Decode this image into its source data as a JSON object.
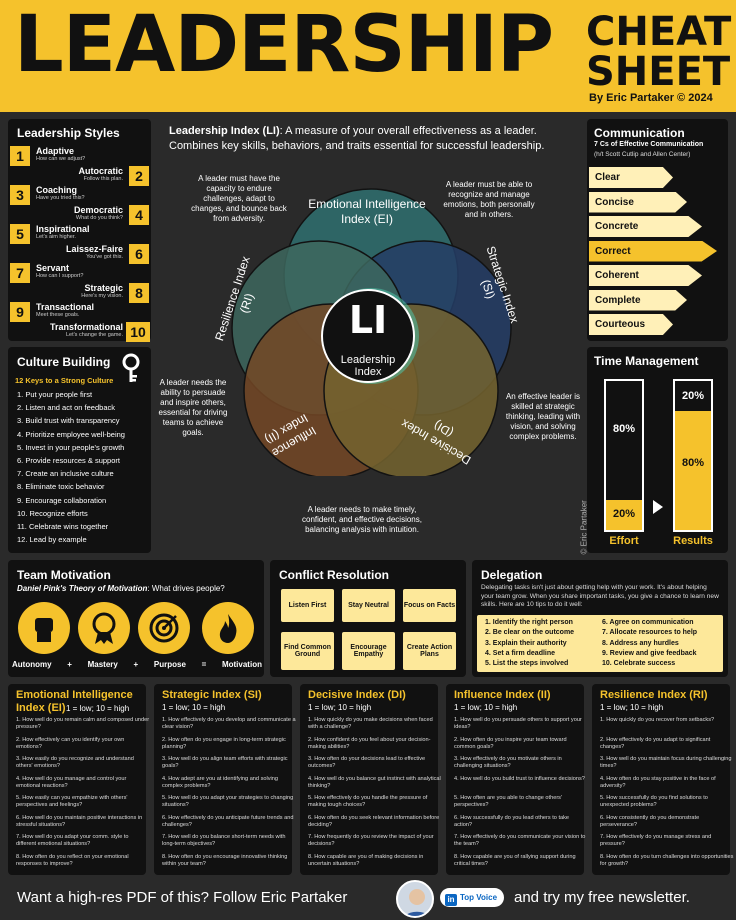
{
  "header": {
    "title": "LEADERSHIP",
    "cheat": "CHEAT",
    "sheet": "SHEET",
    "author": "By Eric Partaker © 2024"
  },
  "styles": {
    "title": "Leadership Styles",
    "items": [
      {
        "n": "1",
        "name": "Adaptive",
        "sub": "How can we adjust?"
      },
      {
        "n": "2",
        "name": "Autocratic",
        "sub": "Follow this plan."
      },
      {
        "n": "3",
        "name": "Coaching",
        "sub": "Have you tried this?"
      },
      {
        "n": "4",
        "name": "Democratic",
        "sub": "What do you think?"
      },
      {
        "n": "5",
        "name": "Inspirational",
        "sub": "Let's aim higher."
      },
      {
        "n": "6",
        "name": "Laissez-Faire",
        "sub": "You've got this."
      },
      {
        "n": "7",
        "name": "Servant",
        "sub": "How can I support?"
      },
      {
        "n": "8",
        "name": "Strategic",
        "sub": "Here's my vision."
      },
      {
        "n": "9",
        "name": "Transactional",
        "sub": "Meet these goals."
      },
      {
        "n": "10",
        "name": "Transformational",
        "sub": "Let's change the game."
      }
    ]
  },
  "culture": {
    "title": "Culture Building",
    "subtitle": "12 Keys to a Strong Culture",
    "items": [
      "1.  Put your people first",
      "2.  Listen and act on feedback",
      "3.  Build trust with transparency",
      "4.  Prioritize employee well-being",
      "5.  Invest in your people's growth",
      "6.  Provide resources & support",
      "7.  Create an inclusive culture",
      "8.  Eliminate toxic behavior",
      "9.  Encourage collaboration",
      "10.  Recognize efforts",
      "11.  Celebrate wins together",
      "12.  Lead by example"
    ]
  },
  "index": {
    "lead": "Leadership Index (LI)",
    "desc": ": A measure of your overall effectiveness as a leader. Combines key skills, behaviors, and traits essential for successful leadership.",
    "li": "LI",
    "li_label": "Leadership Index",
    "ei": "Emotional Intelligence Index (EI)",
    "si": "Strategic Index (SI)",
    "ri": "Resilience Index (RI)",
    "ii": "Influence Index (II)",
    "di": "Decisive Index (DI)",
    "note_ri": "A leader must have the capacity to endure challenges, adapt to changes, and bounce back from adversity.",
    "note_ei": "A leader must be able to recognize and manage emotions, both personally and in others.",
    "note_ii": "A leader needs the ability to persuade and inspire others, essential for driving teams to achieve goals.",
    "note_si": "An effective leader is skilled at strategic thinking, leading with vision, and solving complex problems.",
    "note_di": "A leader needs to make timely, confident, and effective decisions, balancing analysis with intuition.",
    "watermark": "© Eric Partaker"
  },
  "comm": {
    "title": "Communication",
    "subtitle": "7 Cs of Effective Communication",
    "credit": "(h/t Scott Cutlip and Allen Center)",
    "items": [
      "Clear",
      "Concise",
      "Concrete",
      "Correct",
      "Coherent",
      "Complete",
      "Courteous"
    ]
  },
  "time": {
    "title": "Time Management",
    "effort_top": "80%",
    "effort_bottom": "20%",
    "results_top": "20%",
    "results_bottom": "80%",
    "effort": "Effort",
    "results": "Results",
    "effort_fraction": 0.2,
    "results_fraction": 0.8
  },
  "motivation": {
    "title": "Team Motivation",
    "theory": "Daniel Pink's Theory of Motivation",
    "question": ": What drives people?",
    "eq": [
      "Autonomy",
      "+",
      "Mastery",
      "+",
      "Purpose",
      "=",
      "Motivation"
    ]
  },
  "conflict": {
    "title": "Conflict Resolution",
    "items": [
      "Listen First",
      "Stay Neutral",
      "Focus on Facts",
      "Find Common Ground",
      "Encourage Empathy",
      "Create Action Plans"
    ]
  },
  "delegation": {
    "title": "Delegation",
    "desc": "Delegating tasks isn't just about getting help with your work. It's about helping your team grow. When you share important tasks, you give a chance to learn new skills. Here are 10 tips to do it well:",
    "items": [
      "1.  Identify the right person",
      "2.  Be clear on the outcome",
      "3.  Explain their authority",
      "4.  Set a firm deadline",
      "5.  List the steps involved",
      "6.  Agree on communication",
      "7.  Allocate resources to help",
      "8.  Address any hurdles",
      "9.  Review and give feedback",
      "10. Celebrate success"
    ]
  },
  "questions": [
    {
      "title": "Emotional Intelligence Index (EI)",
      "scale": "1 = low; 10 = high",
      "items": [
        "1. How well do you remain calm and composed under pressure?",
        "2. How effectively can you identify your own emotions?",
        "3. How easily do you recognize and understand others' emotions?",
        "4. How well do you manage and control your emotional reactions?",
        "5. How easily can you empathize with others' perspectives and feelings?",
        "6. How well do you maintain positive interactions in stressful situations?",
        "7. How well do you adapt your comm. style to different emotional situations?",
        "8. How often do you reflect on your emotional responses to improve?"
      ]
    },
    {
      "title": "Strategic Index (SI)",
      "scale": "1 = low; 10 = high",
      "items": [
        "1. How effectively do you develop and communicate a clear vision?",
        "2. How often do you engage in long-term strategic planning?",
        "3. How well do you align team efforts with strategic goals?",
        "4. How adept are you at identifying and solving complex problems?",
        "5. How well do you adapt your strategies to changing situations?",
        "6. How effectively do you anticipate future trends and challenges?",
        "7. How well do you balance short-term needs with long-term objectives?",
        "8. How often do you encourage innovative thinking within your team?"
      ]
    },
    {
      "title": "Decisive Index (DI)",
      "scale": "1 = low; 10 = high",
      "items": [
        "1. How quickly do you make decisions when faced with a challenge?",
        "2. How confident do you feel about your decision-making abilities?",
        "3. How often do your decisions lead to effective outcomes?",
        "4. How well do you balance gut instinct with analytical thinking?",
        "5. How effectively do you handle the pressure of making tough choices?",
        "6. How often do you seek relevant information before deciding?",
        "7. How frequently do you review the impact of your decisions?",
        "8. How capable are you of making decisions in uncertain situations?"
      ]
    },
    {
      "title": "Influence Index (II)",
      "scale": "1 = low; 10 = high",
      "items": [
        "1. How well do you persuade others to support your ideas?",
        "2. How often do you inspire your team toward common goals?",
        "3. How effectively do you motivate others in challenging situations?",
        "4. How well do you build trust to influence decisions?",
        "5. How often are you able to change others' perspectives?",
        "6. How successfully do you lead others to take action?",
        "7. How effectively do you communicate your vision to the team?",
        "8. How capable are you of rallying support during critical times?"
      ]
    },
    {
      "title": "Resilience Index (RI)",
      "scale": "1 = low; 10 = high",
      "items": [
        "1. How quickly do you recover from setbacks?",
        "2. How effectively do you adapt to significant changes?",
        "3. How well do you maintain focus during challenging times?",
        "4. How often do you stay positive in the face of adversity?",
        "5. How successfully do you find solutions to unexpected problems?",
        "6. How consistently do you demonstrate perseverance?",
        "7. How effectively do you manage stress and pressure?",
        "8. How often do you turn challenges into opportunities for growth?"
      ]
    }
  ],
  "footer": {
    "left": "Want a high-res PDF of this? Follow Eric Partaker",
    "badge": "Top Voice",
    "badge_in": "in",
    "right": "and try my free newsletter."
  },
  "colors": {
    "accent": "#f5c22c",
    "ei": "#2f6b6b",
    "si": "#24406b",
    "ri": "#3f6d63",
    "ii": "#7a4a26",
    "di": "#7b6830"
  }
}
